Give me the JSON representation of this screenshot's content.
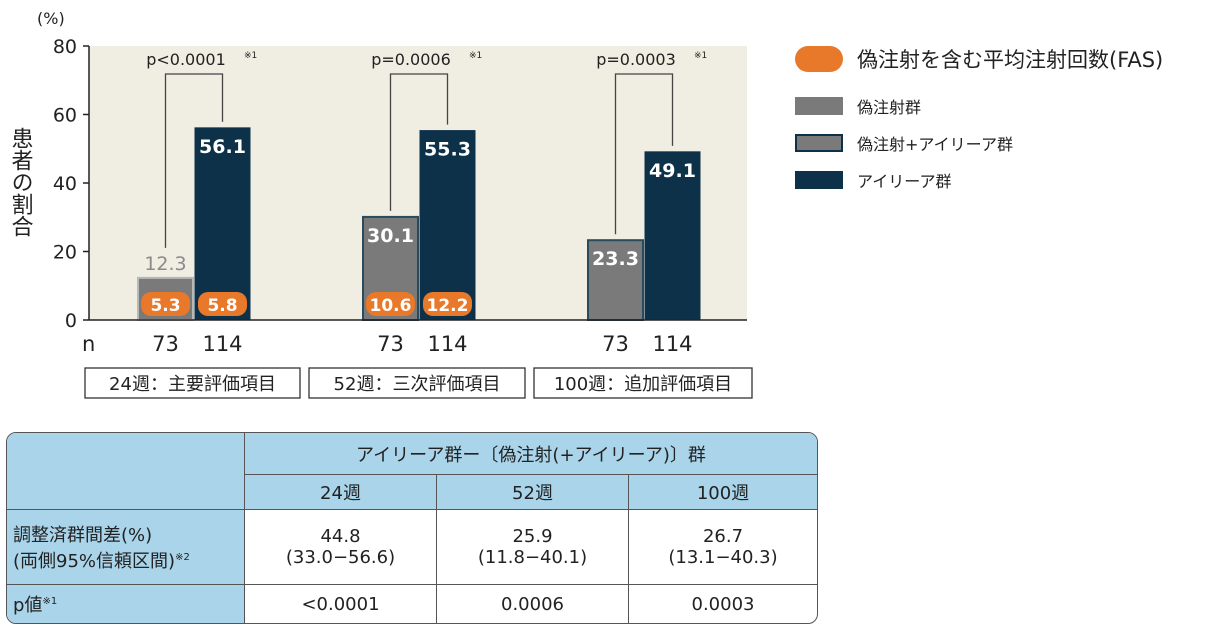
{
  "chart_data": {
    "type": "bar",
    "y_unit": "(%)",
    "ylabel": "患者の割合",
    "ylim": [
      0,
      80
    ],
    "yticks": [
      0,
      20,
      40,
      60,
      80
    ],
    "n_label": "n",
    "groups": [
      {
        "label": "24週：主要評価項目",
        "p": "p<0.0001",
        "p_note": "※1",
        "bars": [
          {
            "series": "偽注射群",
            "value": 12.3,
            "n": "73",
            "injections": "5.3"
          },
          {
            "series": "アイリーア群",
            "value": 56.1,
            "n": "114",
            "injections": "5.8"
          }
        ]
      },
      {
        "label": "52週：三次評価項目",
        "p": "p=0.0006",
        "p_note": "※1",
        "bars": [
          {
            "series": "偽注射+アイリーア群",
            "value": 30.1,
            "n": "73",
            "injections": "10.6"
          },
          {
            "series": "アイリーア群",
            "value": 55.3,
            "n": "114",
            "injections": "12.2"
          }
        ]
      },
      {
        "label": "100週：追加評価項目",
        "p": "p=0.0003",
        "p_note": "※1",
        "bars": [
          {
            "series": "偽注射+アイリーア群",
            "value": 23.3,
            "n": "73",
            "injections": ""
          },
          {
            "series": "アイリーア群",
            "value": 49.1,
            "n": "114",
            "injections": ""
          }
        ]
      }
    ],
    "legend": {
      "main": "偽注射を含む平均注射回数(FAS)",
      "items": [
        "偽注射群",
        "偽注射+アイリーア群",
        "アイリーア群"
      ]
    },
    "colors": {
      "sham": "#7a7a7a",
      "sham_border": "#b8b8b8",
      "sham_eylea": "#7a7a7a",
      "sham_eylea_border": "#2a4a5e",
      "eylea": "#0c3148",
      "orange": "#e8782a",
      "plot_bg": "#f0ede2"
    }
  },
  "table": {
    "header_main": "アイリーア群ー〔偽注射(+アイリーア)〕群",
    "weeks": [
      "24週",
      "52週",
      "100週"
    ],
    "row1_label_a": "調整済群間差(%)",
    "row1_label_b": "(両側95%信頼区間)",
    "row1_note": "※2",
    "row1": [
      {
        "value": "44.8",
        "ci": "(33.0−56.6)"
      },
      {
        "value": "25.9",
        "ci": "(11.8−40.1)"
      },
      {
        "value": "26.7",
        "ci": "(13.1−40.3)"
      }
    ],
    "row2_label": "p値",
    "row2_note": "※1",
    "row2": [
      "<0.0001",
      "0.0006",
      "0.0003"
    ]
  }
}
